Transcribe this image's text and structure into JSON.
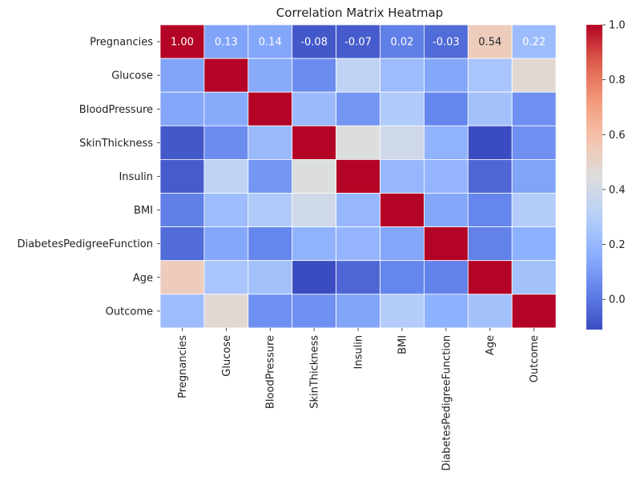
{
  "chart_data": {
    "type": "heatmap",
    "title": "Correlation Matrix Heatmap",
    "xlabel": "",
    "ylabel": "",
    "rows": [
      "Pregnancies",
      "Glucose",
      "BloodPressure",
      "SkinThickness",
      "Insulin",
      "BMI",
      "DiabetesPedigreeFunction",
      "Age",
      "Outcome"
    ],
    "columns": [
      "Pregnancies",
      "Glucose",
      "BloodPressure",
      "SkinThickness",
      "Insulin",
      "BMI",
      "DiabetesPedigreeFunction",
      "Age",
      "Outcome"
    ],
    "values": [
      [
        1.0,
        0.13,
        0.14,
        -0.08,
        -0.07,
        0.02,
        -0.03,
        0.54,
        0.22
      ],
      [
        0.13,
        1.0,
        0.15,
        0.06,
        0.33,
        0.22,
        0.14,
        0.26,
        0.47
      ],
      [
        0.14,
        0.15,
        1.0,
        0.21,
        0.09,
        0.28,
        0.04,
        0.24,
        0.07
      ],
      [
        -0.08,
        0.06,
        0.21,
        1.0,
        0.44,
        0.39,
        0.18,
        -0.11,
        0.07
      ],
      [
        -0.07,
        0.33,
        0.09,
        0.44,
        1.0,
        0.2,
        0.19,
        -0.04,
        0.13
      ],
      [
        0.02,
        0.22,
        0.28,
        0.39,
        0.2,
        1.0,
        0.14,
        0.04,
        0.29
      ],
      [
        -0.03,
        0.14,
        0.04,
        0.18,
        0.19,
        0.14,
        1.0,
        0.03,
        0.17
      ],
      [
        0.54,
        0.26,
        0.24,
        -0.11,
        -0.04,
        0.04,
        0.03,
        1.0,
        0.24
      ],
      [
        0.22,
        0.47,
        0.07,
        0.07,
        0.13,
        0.29,
        0.17,
        0.24,
        1.0
      ]
    ],
    "annotated_row": 0,
    "value_format": "0.00",
    "colormap": "coolwarm",
    "vmin": -0.11,
    "vmax": 1.0,
    "colorbar_ticks": [
      0.0,
      0.2,
      0.4,
      0.6,
      0.8,
      1.0
    ],
    "colorbar_tick_labels": [
      "0.0",
      "0.2",
      "0.4",
      "0.6",
      "0.8",
      "1.0"
    ],
    "grid": true,
    "cell_border_color": "#ffffff",
    "legend": "colorbar-right"
  }
}
